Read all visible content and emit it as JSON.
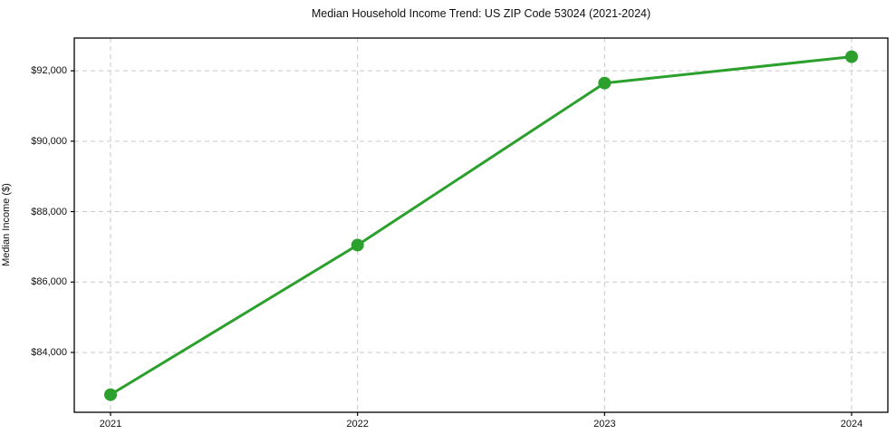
{
  "chart_data": {
    "type": "line",
    "title": "Median Household Income Trend: US ZIP Code 53024 (2021-2024)",
    "xlabel": "",
    "ylabel": "Median Income ($)",
    "categories": [
      "2021",
      "2022",
      "2023",
      "2024"
    ],
    "series": [
      {
        "name": "Median Household Income",
        "values": [
          82800,
          87050,
          91650,
          92400
        ]
      }
    ],
    "yticks": [
      {
        "value": 84000,
        "label": "$84,000"
      },
      {
        "value": 86000,
        "label": "$86,000"
      },
      {
        "value": 88000,
        "label": "$88,000"
      },
      {
        "value": 90000,
        "label": "$90,000"
      },
      {
        "value": 92000,
        "label": "$92,000"
      }
    ],
    "ylim": [
      82300,
      92930
    ],
    "grid": "dashed, both axes",
    "legend": "none",
    "colors": {
      "line": "#2ca02c",
      "marker": "#2ca02c",
      "grid": "#c9c9c9",
      "spine": "#000000",
      "text": "#111111",
      "background": "#ffffff"
    },
    "marker_style": "filled-circle"
  }
}
